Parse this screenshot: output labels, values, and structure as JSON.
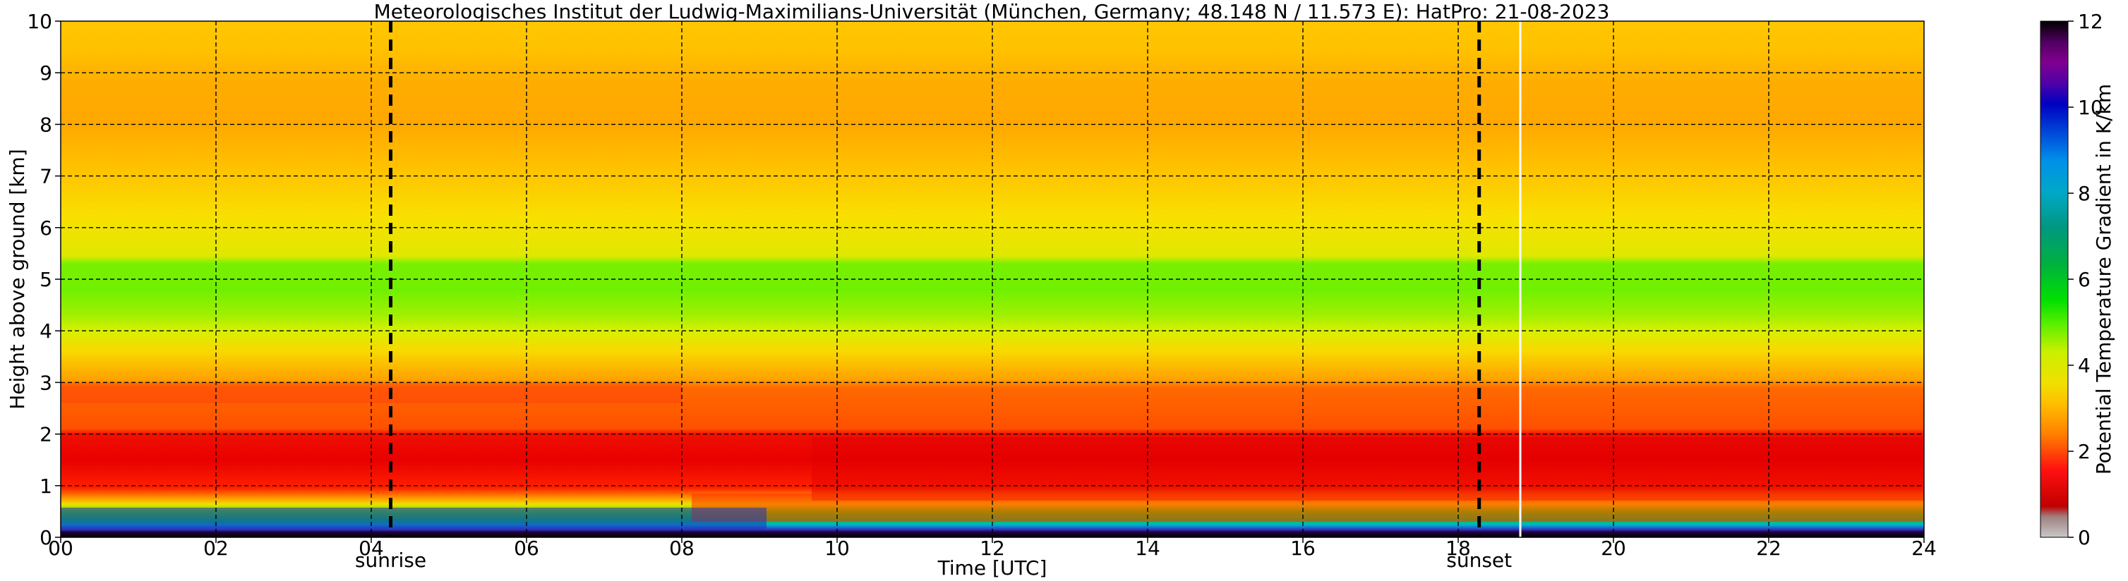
{
  "chart_data": {
    "type": "heatmap",
    "title": "Meteorologisches Institut der Ludwig-Maximilians-Universität (München, Germany; 48.148 N / 11.573 E):    HatPro: 21-08-2023",
    "xlabel": "Time [UTC]",
    "ylabel": "Height above ground [km]",
    "xlim": [
      0,
      24
    ],
    "ylim": [
      0,
      10
    ],
    "x_ticks": [
      "00",
      "02",
      "04",
      "06",
      "08",
      "10",
      "12",
      "14",
      "16",
      "18",
      "20",
      "22",
      "24"
    ],
    "y_ticks": [
      "0",
      "1",
      "2",
      "3",
      "4",
      "5",
      "6",
      "7",
      "8",
      "9",
      "10"
    ],
    "grid": true,
    "colorbar": {
      "label": "Potential Temperature Gradient in K/km",
      "range": [
        0,
        12
      ],
      "ticks": [
        "0",
        "2",
        "4",
        "6",
        "8",
        "10",
        "12"
      ],
      "colors": [
        "#c8c8c8",
        "#a08080",
        "#c00000",
        "#ff1010",
        "#ff8000",
        "#ffc000",
        "#f0e000",
        "#c8f000",
        "#60f000",
        "#00e000",
        "#00b040",
        "#009880",
        "#00a8c8",
        "#0090e8",
        "#0040d8",
        "#0000c0",
        "#5000a8",
        "#800090",
        "#500060",
        "#000000"
      ]
    },
    "events": [
      {
        "label": "sunrise",
        "time_utc": 4.25
      },
      {
        "label": "sunset",
        "time_utc": 18.27
      }
    ],
    "data_gap_time_utc": 18.8,
    "profile_layers_km": [
      {
        "bottom": 0.0,
        "top": 0.1,
        "gradient": 12.0
      },
      {
        "bottom": 0.1,
        "top": 0.3,
        "gradient": 9.5
      },
      {
        "bottom": 0.3,
        "top": 0.6,
        "gradient": 6.0
      },
      {
        "bottom": 0.6,
        "top": 1.0,
        "gradient": 3.0
      },
      {
        "bottom": 1.0,
        "top": 2.0,
        "gradient": 1.5
      },
      {
        "bottom": 2.0,
        "top": 3.0,
        "gradient": 2.0
      },
      {
        "bottom": 3.0,
        "top": 4.0,
        "gradient": 3.6
      },
      {
        "bottom": 4.0,
        "top": 5.4,
        "gradient": 4.5
      },
      {
        "bottom": 5.4,
        "top": 7.2,
        "gradient": 3.2
      },
      {
        "bottom": 7.2,
        "top": 9.4,
        "gradient": 2.6
      },
      {
        "bottom": 9.4,
        "top": 10.0,
        "gradient": 2.9
      }
    ]
  }
}
